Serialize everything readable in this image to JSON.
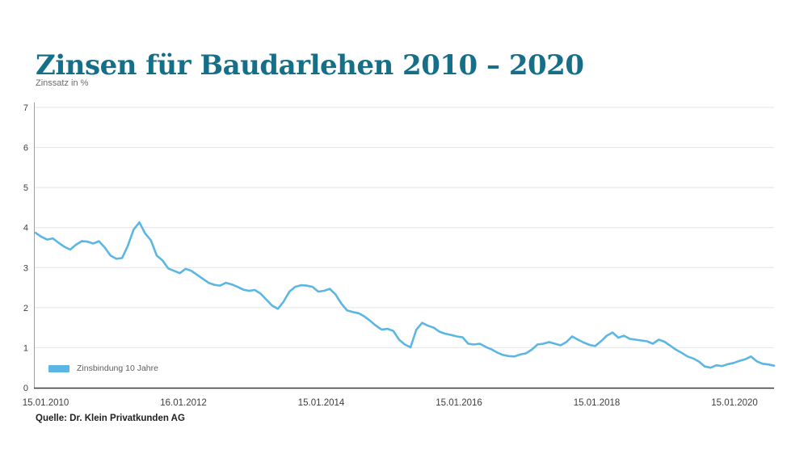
{
  "header": {
    "title": "Zinsen für Baudarlehen 2010 – 2020"
  },
  "axis": {
    "ylabel": "Zinssatz in %"
  },
  "legend": {
    "label": "Zinsbindung 10 Jahre"
  },
  "footer": {
    "source": "Quelle: Dr. Klein Privatkunden AG"
  },
  "colors": {
    "title_teal": "#156f89",
    "line_blue": "#5cb6e3",
    "gridline": "#e4e4e4",
    "y_axis_line": "#a0a0a0",
    "x_axis_line": "#3a3a3a",
    "tick_text": "#3d3d3d"
  },
  "chart_data": {
    "type": "line",
    "title": "Zinsen für Baudarlehen 2010 – 2020",
    "xlabel": "",
    "ylabel": "Zinssatz in %",
    "ylim": [
      0,
      7
    ],
    "yticks": [
      0,
      1,
      2,
      3,
      4,
      5,
      6,
      7
    ],
    "xticklabels": [
      "15.01.2010",
      "16.01.2012",
      "15.01.2014",
      "15.01.2016",
      "15.01.2018",
      "15.01.2020"
    ],
    "grid": "horizontal",
    "legend_position": "bottom-left",
    "x_start_label": "15.01.2010",
    "x_end_label": "ca. 09.2020",
    "series": [
      {
        "name": "Zinsbindung 10 Jahre",
        "color": "#5cb6e3",
        "sampling": "monthly 01.2010 - 09.2020",
        "values": [
          3.87,
          3.77,
          3.7,
          3.73,
          3.62,
          3.52,
          3.45,
          3.57,
          3.66,
          3.65,
          3.6,
          3.66,
          3.5,
          3.3,
          3.22,
          3.24,
          3.55,
          3.95,
          4.13,
          3.85,
          3.68,
          3.3,
          3.18,
          2.98,
          2.92,
          2.86,
          2.97,
          2.92,
          2.82,
          2.72,
          2.62,
          2.57,
          2.55,
          2.62,
          2.58,
          2.52,
          2.45,
          2.42,
          2.44,
          2.35,
          2.2,
          2.05,
          1.97,
          2.15,
          2.4,
          2.52,
          2.56,
          2.55,
          2.52,
          2.4,
          2.42,
          2.47,
          2.33,
          2.1,
          1.93,
          1.89,
          1.86,
          1.78,
          1.67,
          1.55,
          1.45,
          1.47,
          1.42,
          1.2,
          1.08,
          1.01,
          1.45,
          1.62,
          1.55,
          1.5,
          1.4,
          1.35,
          1.32,
          1.28,
          1.26,
          1.1,
          1.08,
          1.1,
          1.02,
          0.96,
          0.88,
          0.82,
          0.79,
          0.78,
          0.83,
          0.86,
          0.95,
          1.08,
          1.1,
          1.14,
          1.1,
          1.06,
          1.14,
          1.28,
          1.2,
          1.13,
          1.07,
          1.04,
          1.16,
          1.3,
          1.38,
          1.25,
          1.3,
          1.22,
          1.2,
          1.18,
          1.16,
          1.1,
          1.2,
          1.15,
          1.05,
          0.95,
          0.87,
          0.78,
          0.73,
          0.65,
          0.53,
          0.5,
          0.56,
          0.54,
          0.59,
          0.62,
          0.67,
          0.71,
          0.78,
          0.66,
          0.6,
          0.58,
          0.55
        ]
      }
    ]
  }
}
